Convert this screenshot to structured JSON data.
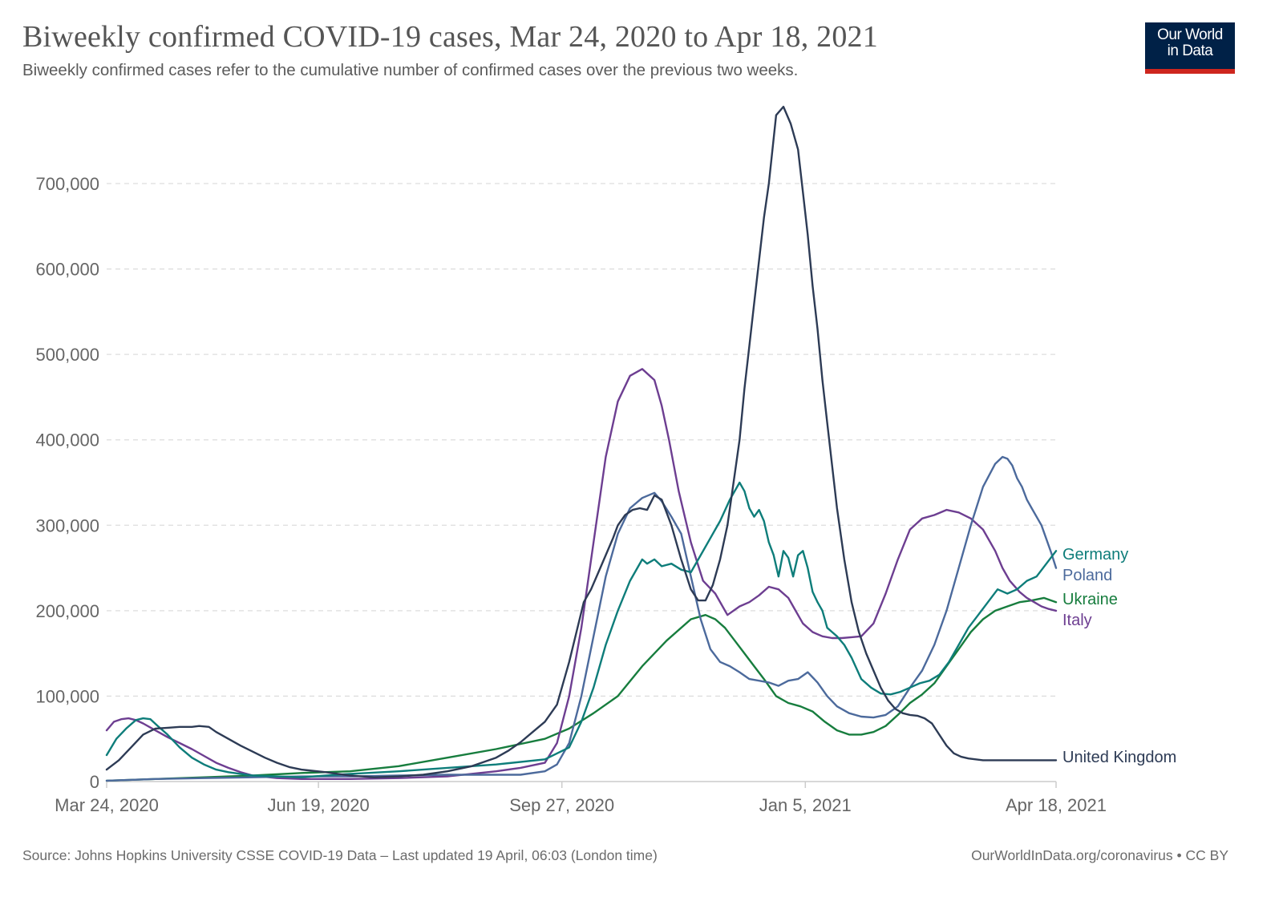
{
  "header": {
    "title": "Biweekly confirmed COVID-19 cases, Mar 24, 2020 to Apr 18, 2021",
    "subtitle": "Biweekly confirmed cases refer to the cumulative number of confirmed cases over the previous two weeks.",
    "logo_line1": "Our World",
    "logo_line2": "in Data"
  },
  "footer": {
    "source": "Source: Johns Hopkins University CSSE COVID-19 Data – Last updated 19 April, 06:03 (London time)",
    "credit": "OurWorldInData.org/coronavirus • CC BY"
  },
  "colors": {
    "logo_bg": "#002147",
    "logo_accent": "#ce261e",
    "grid": "#dddddd",
    "axis": "#cccccc"
  },
  "chart_data": {
    "type": "line",
    "title": "Biweekly confirmed COVID-19 cases, Mar 24, 2020 to Apr 18, 2021",
    "xlabel": "",
    "ylabel": "",
    "x_unit": "days since Mar 24, 2020",
    "xlim": [
      0,
      390
    ],
    "ylim": [
      0,
      790000
    ],
    "grid": true,
    "legend": "right (end-of-line labels)",
    "x_ticks": [
      {
        "day": 0,
        "label": "Mar 24, 2020"
      },
      {
        "day": 87,
        "label": "Jun 19, 2020"
      },
      {
        "day": 187,
        "label": "Sep 27, 2020"
      },
      {
        "day": 287,
        "label": "Jan 5, 2021"
      },
      {
        "day": 390,
        "label": "Apr 18, 2021"
      }
    ],
    "y_ticks": [
      {
        "value": 0,
        "label": "0"
      },
      {
        "value": 100000,
        "label": "100,000"
      },
      {
        "value": 200000,
        "label": "200,000"
      },
      {
        "value": 300000,
        "label": "300,000"
      },
      {
        "value": 400000,
        "label": "400,000"
      },
      {
        "value": 500000,
        "label": "500,000"
      },
      {
        "value": 600000,
        "label": "600,000"
      },
      {
        "value": 700000,
        "label": "700,000"
      }
    ],
    "series": [
      {
        "name": "United Kingdom",
        "color": "#2d3b55",
        "x": [
          0,
          5,
          10,
          15,
          20,
          25,
          30,
          35,
          38,
          42,
          45,
          50,
          55,
          60,
          65,
          70,
          75,
          80,
          85,
          90,
          95,
          100,
          110,
          120,
          130,
          140,
          150,
          160,
          165,
          170,
          175,
          180,
          185,
          190,
          193,
          196,
          199,
          202,
          205,
          208,
          210,
          213,
          216,
          219,
          222,
          225,
          228,
          232,
          236,
          240,
          243,
          246,
          249,
          252,
          255,
          258,
          260,
          262,
          264,
          266,
          268,
          270,
          272,
          275,
          278,
          281,
          284,
          286,
          288,
          290,
          292,
          294,
          296,
          298,
          300,
          303,
          306,
          309,
          312,
          315,
          318,
          321,
          324,
          327,
          330,
          333,
          336,
          339,
          342,
          345,
          348,
          351,
          354,
          357,
          360,
          363,
          366,
          369,
          372,
          375,
          378,
          381,
          384,
          387,
          390
        ],
        "values": [
          14000,
          25000,
          40000,
          55000,
          62000,
          63000,
          64000,
          64000,
          65000,
          64000,
          58000,
          50000,
          42000,
          35000,
          28000,
          22000,
          17000,
          14000,
          12500,
          11000,
          9000,
          7000,
          5000,
          6000,
          8000,
          12000,
          18000,
          28000,
          36000,
          46000,
          58000,
          70000,
          90000,
          140000,
          175000,
          210000,
          225000,
          245000,
          265000,
          285000,
          300000,
          312000,
          318000,
          320000,
          318000,
          335000,
          330000,
          300000,
          260000,
          225000,
          212000,
          212000,
          230000,
          260000,
          300000,
          360000,
          400000,
          460000,
          510000,
          560000,
          610000,
          660000,
          700000,
          780000,
          790000,
          770000,
          740000,
          690000,
          640000,
          580000,
          530000,
          470000,
          420000,
          370000,
          320000,
          260000,
          210000,
          175000,
          150000,
          130000,
          110000,
          95000,
          85000,
          80000,
          78000,
          77000,
          74000,
          68000,
          55000,
          42000,
          33000,
          29000,
          27000,
          26000,
          25000,
          25000,
          25000,
          25000,
          25000,
          25000,
          25000,
          25000,
          25000,
          25000,
          25000
        ]
      },
      {
        "name": "Germany",
        "color": "#0e7d7a",
        "x": [
          0,
          4,
          8,
          12,
          15,
          18,
          21,
          25,
          30,
          35,
          40,
          45,
          50,
          55,
          60,
          70,
          80,
          90,
          100,
          120,
          140,
          160,
          180,
          190,
          195,
          200,
          205,
          210,
          215,
          220,
          222,
          225,
          228,
          232,
          236,
          240,
          244,
          248,
          252,
          256,
          260,
          262,
          264,
          266,
          268,
          270,
          272,
          274,
          276,
          278,
          280,
          282,
          284,
          286,
          288,
          290,
          292,
          294,
          296,
          298,
          300,
          303,
          306,
          310,
          314,
          318,
          322,
          326,
          330,
          334,
          338,
          342,
          346,
          350,
          354,
          358,
          362,
          366,
          370,
          374,
          378,
          382,
          386,
          390
        ],
        "values": [
          31000,
          50000,
          62000,
          72000,
          74000,
          73000,
          65000,
          55000,
          40000,
          28000,
          20000,
          14000,
          11000,
          9000,
          7000,
          6000,
          5000,
          7000,
          9000,
          12000,
          16000,
          20000,
          26000,
          40000,
          70000,
          110000,
          160000,
          200000,
          235000,
          260000,
          255000,
          260000,
          252000,
          255000,
          248000,
          245000,
          265000,
          285000,
          305000,
          330000,
          350000,
          340000,
          320000,
          310000,
          318000,
          305000,
          280000,
          265000,
          240000,
          270000,
          262000,
          240000,
          265000,
          270000,
          250000,
          222000,
          210000,
          200000,
          180000,
          175000,
          170000,
          160000,
          145000,
          120000,
          110000,
          103000,
          102000,
          105000,
          110000,
          115000,
          118000,
          125000,
          140000,
          160000,
          180000,
          195000,
          210000,
          225000,
          220000,
          225000,
          235000,
          240000,
          255000,
          270000
        ]
      },
      {
        "name": "Poland",
        "color": "#4c6a9c",
        "x": [
          0,
          20,
          40,
          60,
          80,
          100,
          120,
          140,
          160,
          170,
          180,
          185,
          190,
          195,
          200,
          205,
          210,
          215,
          220,
          225,
          228,
          232,
          236,
          240,
          244,
          248,
          252,
          256,
          260,
          264,
          268,
          272,
          276,
          280,
          284,
          288,
          290,
          292,
          296,
          300,
          305,
          310,
          315,
          320,
          325,
          330,
          335,
          340,
          345,
          350,
          355,
          360,
          365,
          368,
          370,
          372,
          374,
          376,
          378,
          380,
          384,
          388,
          390
        ],
        "values": [
          1000,
          3000,
          4000,
          5000,
          6000,
          6000,
          7000,
          8000,
          8000,
          8000,
          12000,
          20000,
          45000,
          100000,
          170000,
          240000,
          290000,
          320000,
          332000,
          338000,
          328000,
          310000,
          290000,
          240000,
          190000,
          155000,
          140000,
          135000,
          128000,
          120000,
          118000,
          116000,
          112000,
          118000,
          120000,
          128000,
          122000,
          116000,
          100000,
          88000,
          80000,
          76000,
          75000,
          78000,
          88000,
          110000,
          130000,
          160000,
          200000,
          250000,
          300000,
          345000,
          372000,
          380000,
          378000,
          370000,
          355000,
          345000,
          330000,
          320000,
          300000,
          268000,
          250000
        ]
      },
      {
        "name": "Ukraine",
        "color": "#177d3e",
        "x": [
          0,
          20,
          40,
          60,
          80,
          100,
          120,
          140,
          160,
          180,
          190,
          200,
          210,
          220,
          230,
          240,
          246,
          250,
          254,
          258,
          262,
          266,
          270,
          275,
          280,
          285,
          290,
          295,
          300,
          305,
          310,
          315,
          320,
          325,
          330,
          335,
          340,
          345,
          350,
          355,
          360,
          365,
          370,
          375,
          380,
          385,
          390
        ],
        "values": [
          1000,
          3000,
          5000,
          7000,
          10000,
          12000,
          18000,
          28000,
          38000,
          50000,
          62000,
          80000,
          100000,
          135000,
          165000,
          190000,
          195000,
          190000,
          180000,
          165000,
          150000,
          135000,
          120000,
          100000,
          92000,
          88000,
          82000,
          70000,
          60000,
          55000,
          55000,
          58000,
          65000,
          78000,
          92000,
          102000,
          115000,
          135000,
          155000,
          175000,
          190000,
          200000,
          205000,
          210000,
          212000,
          215000,
          210000
        ]
      },
      {
        "name": "Italy",
        "color": "#6d3e91",
        "x": [
          0,
          3,
          6,
          9,
          12,
          15,
          20,
          25,
          30,
          35,
          40,
          45,
          50,
          55,
          60,
          70,
          80,
          90,
          100,
          120,
          140,
          160,
          170,
          180,
          185,
          190,
          195,
          200,
          205,
          210,
          215,
          220,
          225,
          228,
          231,
          235,
          240,
          245,
          250,
          255,
          260,
          264,
          268,
          272,
          276,
          280,
          283,
          286,
          290,
          294,
          298,
          302,
          306,
          310,
          315,
          320,
          325,
          330,
          335,
          340,
          345,
          350,
          355,
          360,
          365,
          368,
          371,
          375,
          378,
          381,
          384,
          387,
          390
        ],
        "values": [
          60000,
          70000,
          73000,
          74000,
          72000,
          68000,
          60000,
          52000,
          45000,
          38000,
          30000,
          22000,
          16000,
          11000,
          7000,
          4000,
          3000,
          3000,
          3000,
          4000,
          6000,
          12000,
          16000,
          22000,
          45000,
          100000,
          180000,
          280000,
          380000,
          445000,
          475000,
          483000,
          470000,
          440000,
          400000,
          340000,
          280000,
          235000,
          220000,
          195000,
          205000,
          210000,
          218000,
          228000,
          225000,
          215000,
          200000,
          185000,
          175000,
          170000,
          168000,
          168000,
          169000,
          170000,
          185000,
          220000,
          260000,
          295000,
          308000,
          312000,
          318000,
          315000,
          308000,
          295000,
          270000,
          250000,
          235000,
          222000,
          215000,
          210000,
          205000,
          202000,
          200000
        ]
      }
    ],
    "end_labels": [
      {
        "series": "Germany",
        "label": "Germany"
      },
      {
        "series": "Poland",
        "label": "Poland"
      },
      {
        "series": "Ukraine",
        "label": "Ukraine"
      },
      {
        "series": "Italy",
        "label": "Italy"
      },
      {
        "series": "United Kingdom",
        "label": "United Kingdom"
      }
    ]
  }
}
